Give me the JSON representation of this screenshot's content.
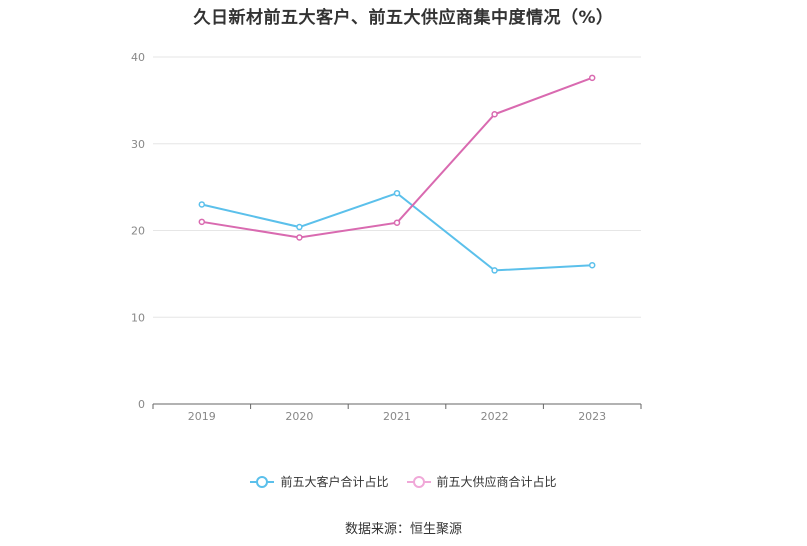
{
  "chart_data": {
    "type": "line",
    "title": "久日新材前五大客户、前五大供应商集中度情况（%）",
    "x": [
      "2019",
      "2020",
      "2021",
      "2022",
      "2023"
    ],
    "series": [
      {
        "name": "前五大客户合计占比",
        "color": "#5bc0eb",
        "values": [
          23.0,
          20.4,
          24.3,
          15.4,
          16.0
        ]
      },
      {
        "name": "前五大供应商合计占比",
        "color": "#d96ab0",
        "values": [
          21.0,
          19.2,
          20.9,
          33.4,
          37.6
        ]
      }
    ],
    "ylim": [
      0,
      40
    ],
    "yticks": [
      0,
      10,
      20,
      30,
      40
    ],
    "grid": true,
    "legend_position": "bottom"
  },
  "source_text": "数据来源：恒生聚源"
}
